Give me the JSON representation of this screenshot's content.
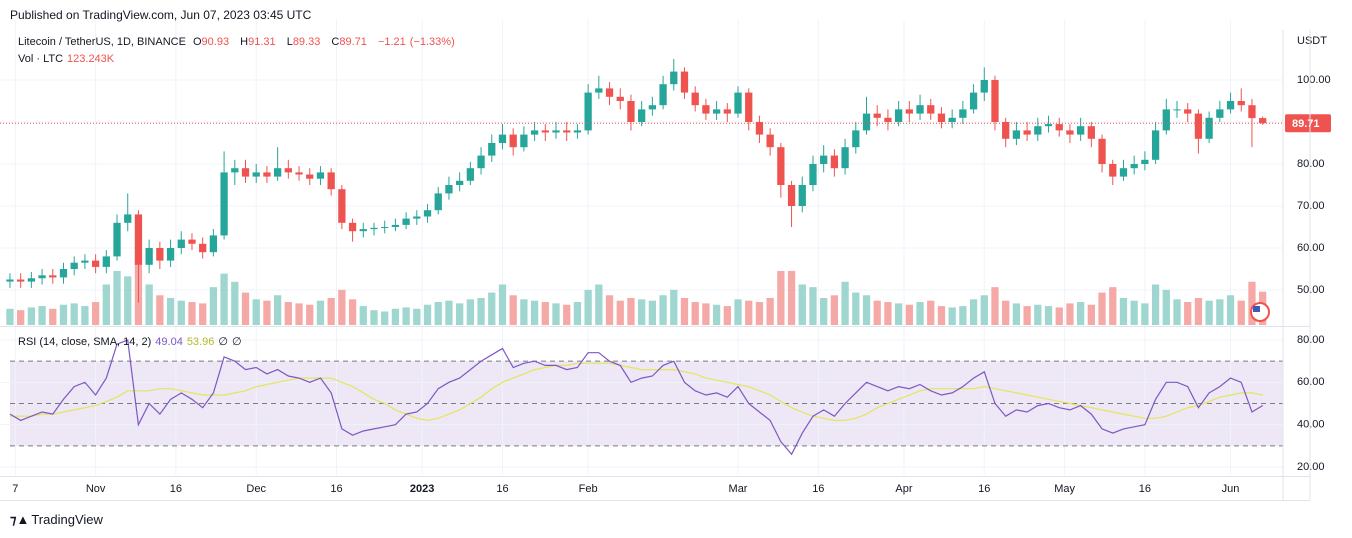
{
  "header": {
    "published": "Published on TradingView.com, Jun 07, 2023 03:45 UTC"
  },
  "footer": {
    "brand": "TradingView"
  },
  "chart_data": {
    "type": "candlestick",
    "symbol": "Litecoin / TetherUS, 1D, BINANCE",
    "ohlc_labels": [
      "O",
      "H",
      "L",
      "C"
    ],
    "change": {
      "value": -1.21,
      "label": "−1.21"
    },
    "change_pct": {
      "value": -1.33,
      "label": "(−1.33%)"
    },
    "y_axis_label": "USDT",
    "up_color": "#26a69a",
    "down_color": "#ef5350",
    "xlim": [
      -0.93,
      118.9
    ],
    "xticks": [
      {
        "value": 0.5,
        "label": "7"
      },
      {
        "value": 8,
        "label": "Nov"
      },
      {
        "value": 15.5,
        "label": "16"
      },
      {
        "value": 23,
        "label": "Dec"
      },
      {
        "value": 30.5,
        "label": "16"
      },
      {
        "value": 38.5,
        "label": "2023",
        "bold": true
      },
      {
        "value": 46,
        "label": "16"
      },
      {
        "value": 54,
        "label": "Feb"
      },
      {
        "value": 68,
        "label": "Mar"
      },
      {
        "value": 75.5,
        "label": "16"
      },
      {
        "value": 83.5,
        "label": "Apr"
      },
      {
        "value": 91,
        "label": "16"
      },
      {
        "value": 98.5,
        "label": "May"
      },
      {
        "value": 106,
        "label": "16"
      },
      {
        "value": 114,
        "label": "Jun"
      }
    ],
    "ylim": [
      41.67,
      111.9
    ],
    "yticks": [
      {
        "value": 50,
        "label": "50.00"
      },
      {
        "value": 60,
        "label": "60.00"
      },
      {
        "value": 70,
        "label": "70.00"
      },
      {
        "value": 80,
        "label": "80.00"
      },
      {
        "value": 90,
        "label": "90.00"
      },
      {
        "value": 100,
        "label": "100.00"
      }
    ],
    "open": [
      52,
      52.5,
      52,
      52.8,
      53.5,
      53,
      55,
      56.5,
      57,
      55.5,
      58,
      66,
      68,
      56,
      60,
      57,
      60,
      62,
      61,
      59,
      63,
      78,
      79,
      77,
      78,
      77,
      79,
      78,
      77.5,
      76.5,
      78,
      74,
      66,
      64,
      64.5,
      64.8,
      65,
      65.5,
      67,
      67.5,
      69,
      73,
      75,
      76,
      79,
      82,
      85,
      87,
      84,
      87,
      88,
      87.5,
      88,
      87.5,
      88,
      97,
      98,
      96,
      95,
      90,
      93,
      94,
      99,
      102,
      97,
      94,
      92,
      93,
      92,
      97,
      90,
      87,
      84,
      75,
      70,
      75,
      80,
      82,
      79,
      84,
      88,
      92,
      91,
      90,
      93,
      92,
      94,
      92,
      90,
      91,
      93,
      97,
      100,
      90,
      86,
      88,
      87,
      89,
      89.5,
      88,
      87,
      89,
      86,
      80,
      77,
      79,
      80,
      81,
      88,
      93,
      93,
      92,
      86,
      91,
      93,
      95,
      94,
      90.93
    ],
    "high": [
      54,
      54,
      54.3,
      55,
      55,
      56.5,
      58,
      58.5,
      58.5,
      59.5,
      68,
      73,
      69,
      62,
      61.5,
      62,
      64,
      63.5,
      62.5,
      64.5,
      83,
      81,
      81,
      80,
      79.5,
      84,
      81,
      79.5,
      79,
      79.5,
      79,
      75,
      67,
      66,
      66,
      66.5,
      67,
      68.5,
      69,
      70.5,
      74.5,
      77,
      78,
      80.5,
      84,
      87,
      89.5,
      88.5,
      89,
      90,
      89.5,
      90,
      90,
      89.5,
      99,
      101,
      99.5,
      98,
      96.5,
      95,
      96,
      101,
      105,
      103,
      98.5,
      95.5,
      95,
      94.5,
      98.5,
      98,
      91.5,
      88.5,
      85,
      76,
      77,
      82,
      84.5,
      83.5,
      86,
      90,
      96,
      94,
      93,
      95,
      95,
      96.5,
      95.5,
      93.5,
      93,
      95,
      99,
      103,
      101,
      91,
      90,
      90,
      91,
      91.5,
      91,
      89.5,
      91,
      90,
      87,
      81,
      81,
      82,
      83,
      90,
      95.5,
      95,
      94.5,
      93,
      92.5,
      95,
      97,
      98,
      95.5,
      91.31
    ],
    "low": [
      50.5,
      50.5,
      50.5,
      51.3,
      51.5,
      51.5,
      53.5,
      55,
      54,
      54,
      57,
      64,
      47,
      54,
      55,
      55.5,
      58.5,
      59.5,
      57.5,
      58,
      62,
      75,
      75.5,
      75.5,
      75.5,
      76,
      76.5,
      76,
      75,
      75,
      72.5,
      64.5,
      61.5,
      62.5,
      63,
      63.5,
      64,
      64.5,
      65.5,
      66,
      68,
      71.5,
      73.5,
      75,
      77.5,
      80.5,
      83.5,
      82,
      83,
      85.5,
      85.5,
      86,
      85.5,
      86,
      87,
      95.5,
      94,
      93,
      88,
      89,
      91.5,
      93,
      97.5,
      95.5,
      92.5,
      90.5,
      90.5,
      90,
      91,
      88,
      85,
      82,
      72,
      65,
      68.5,
      73.5,
      78,
      77,
      77.5,
      82.5,
      87,
      89,
      88,
      89,
      90,
      90.5,
      90.5,
      88.5,
      88.5,
      89.5,
      92,
      95,
      88,
      84,
      84.5,
      85.5,
      85.5,
      87.5,
      86.5,
      85,
      85.5,
      84,
      78,
      75,
      76,
      77.5,
      78.5,
      80,
      87,
      91,
      90,
      82.5,
      85,
      90,
      92,
      92.5,
      84,
      89.33
    ],
    "close": [
      52.5,
      52,
      52.8,
      53.5,
      53,
      55,
      56.5,
      57,
      55.5,
      58,
      66,
      68,
      56,
      60,
      57,
      60,
      62,
      61,
      59,
      63,
      78,
      79,
      77,
      78,
      77,
      79,
      78,
      77.5,
      76.5,
      78,
      74,
      66,
      64,
      64.5,
      64.8,
      65,
      65.5,
      67,
      67.5,
      69,
      73,
      75,
      76,
      79,
      82,
      85,
      87,
      84,
      87,
      88,
      87.5,
      88,
      87.5,
      88,
      97,
      98,
      96,
      95,
      90,
      93,
      94,
      99,
      102,
      97,
      94,
      92,
      93,
      92,
      97,
      90,
      87,
      84,
      75,
      70,
      75,
      80,
      82,
      79,
      84,
      88,
      92,
      91,
      90,
      93,
      92,
      94,
      92,
      90,
      91,
      93,
      97,
      100,
      90,
      86,
      88,
      87,
      89,
      89.5,
      88,
      87,
      89,
      86,
      80,
      77,
      79,
      80,
      81,
      88,
      93,
      93,
      92,
      86,
      91,
      93,
      95,
      94,
      90.92,
      89.71
    ],
    "volume": {
      "name": "Vol · LTC",
      "ylim": [
        0,
        370
      ],
      "up_color": "#9fd6cf",
      "down_color": "#f5a9a6",
      "values": [
        60,
        55,
        65,
        70,
        60,
        75,
        80,
        70,
        85,
        150,
        200,
        180,
        230,
        150,
        110,
        100,
        90,
        85,
        80,
        140,
        190,
        160,
        120,
        95,
        90,
        110,
        85,
        80,
        75,
        90,
        100,
        130,
        95,
        70,
        55,
        50,
        60,
        65,
        60,
        75,
        85,
        90,
        80,
        95,
        100,
        120,
        150,
        110,
        95,
        90,
        85,
        80,
        75,
        85,
        130,
        150,
        110,
        90,
        100,
        95,
        90,
        110,
        130,
        100,
        85,
        80,
        75,
        70,
        95,
        90,
        85,
        100,
        200,
        200,
        150,
        140,
        100,
        110,
        160,
        120,
        110,
        90,
        85,
        80,
        75,
        85,
        90,
        70,
        65,
        70,
        95,
        110,
        140,
        90,
        80,
        70,
        75,
        70,
        65,
        80,
        85,
        75,
        120,
        140,
        100,
        90,
        80,
        150,
        130,
        95,
        85,
        100,
        90,
        95,
        110,
        90,
        160,
        123.243
      ],
      "value_labels": {
        "117": "123.243K"
      }
    },
    "rsi": {
      "name": "RSI (14, close, SMA, 14, 2)",
      "color": "#7e57c2",
      "sma_color": "#e4e65c",
      "band_color": "#ede7f6",
      "extra": [
        "∅",
        "∅"
      ],
      "ylim": [
        16.22,
        85.67
      ],
      "yticks": [
        {
          "value": 20,
          "label": "20.00"
        },
        {
          "value": 40,
          "label": "40.00"
        },
        {
          "value": 60,
          "label": "60.00"
        },
        {
          "value": 80,
          "label": "80.00"
        }
      ],
      "levels": [
        70,
        50,
        30
      ],
      "values": [
        45,
        42,
        44,
        46,
        45,
        52,
        58,
        60,
        54,
        62,
        78,
        80,
        40,
        50,
        45,
        52,
        55,
        52,
        48,
        55,
        72,
        70,
        66,
        67,
        64,
        66,
        63,
        62,
        60,
        62,
        55,
        38,
        35,
        37,
        38,
        39,
        40,
        45,
        46,
        50,
        57,
        60,
        62,
        66,
        70,
        73,
        76,
        67,
        69,
        70,
        68,
        68,
        66,
        67,
        74,
        74,
        70,
        68,
        60,
        62,
        63,
        68,
        70,
        60,
        56,
        54,
        55,
        53,
        58,
        50,
        46,
        42,
        32,
        26,
        36,
        44,
        47,
        44,
        50,
        55,
        60,
        58,
        56,
        58,
        57,
        59,
        56,
        54,
        55,
        58,
        62,
        65,
        50,
        44,
        47,
        46,
        49,
        50,
        48,
        47,
        49,
        45,
        38,
        36,
        38,
        39,
        40,
        52,
        60,
        60,
        58,
        48,
        55,
        58,
        62,
        60,
        46,
        49.04
      ],
      "sma": [
        44,
        44,
        44,
        45,
        45,
        46,
        47,
        48,
        49,
        51,
        53,
        56,
        56,
        56,
        57,
        57,
        56,
        55,
        54,
        54,
        54,
        55,
        56,
        58,
        59,
        60,
        61,
        62,
        62,
        62,
        62,
        60,
        58,
        55,
        52,
        50,
        47,
        45,
        43,
        42,
        43,
        45,
        47,
        50,
        53,
        57,
        60,
        62,
        64,
        66,
        67,
        68,
        68,
        69,
        69,
        69,
        69,
        68,
        67,
        66,
        66,
        66,
        66,
        65,
        64,
        62,
        61,
        60,
        59,
        58,
        56,
        54,
        51,
        48,
        46,
        44,
        43,
        42,
        42,
        43,
        45,
        48,
        50,
        52,
        54,
        56,
        57,
        57,
        57,
        57,
        57,
        58,
        57,
        56,
        55,
        54,
        53,
        52,
        51,
        50,
        49,
        48,
        47,
        46,
        45,
        44,
        43,
        43,
        44,
        46,
        48,
        49,
        51,
        53,
        54,
        55,
        55,
        53.96
      ]
    }
  }
}
